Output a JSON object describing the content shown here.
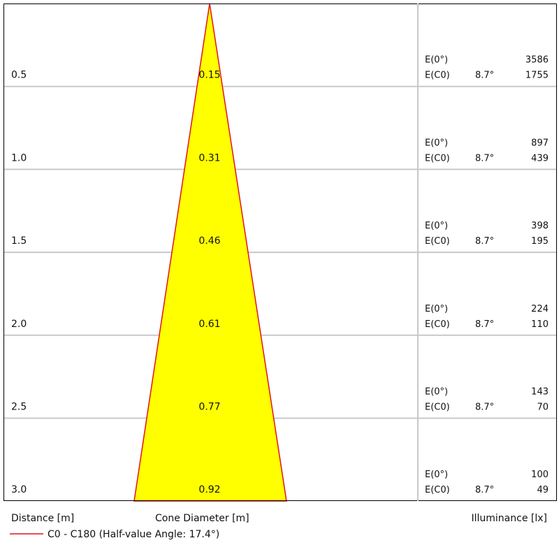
{
  "rows": [
    {
      "distance": "0.5",
      "diameter": "0.15",
      "e0_label": "E(0°)",
      "e0_value": "3586",
      "ec0_label": "E(C0)",
      "angle": "8.7°",
      "ec0_value": "1755"
    },
    {
      "distance": "1.0",
      "diameter": "0.31",
      "e0_label": "E(0°)",
      "e0_value": "897",
      "ec0_label": "E(C0)",
      "angle": "8.7°",
      "ec0_value": "439"
    },
    {
      "distance": "1.5",
      "diameter": "0.46",
      "e0_label": "E(0°)",
      "e0_value": "398",
      "ec0_label": "E(C0)",
      "angle": "8.7°",
      "ec0_value": "195"
    },
    {
      "distance": "2.0",
      "diameter": "0.61",
      "e0_label": "E(0°)",
      "e0_value": "224",
      "ec0_label": "E(C0)",
      "angle": "8.7°",
      "ec0_value": "110"
    },
    {
      "distance": "2.5",
      "diameter": "0.77",
      "e0_label": "E(0°)",
      "e0_value": "143",
      "ec0_label": "E(C0)",
      "angle": "8.7°",
      "ec0_value": "70"
    },
    {
      "distance": "3.0",
      "diameter": "0.92",
      "e0_label": "E(0°)",
      "e0_value": "100",
      "ec0_label": "E(C0)",
      "angle": "8.7°",
      "ec0_value": "49"
    }
  ],
  "footer": {
    "distance_label": "Distance [m]",
    "diameter_label": "Cone Diameter [m]",
    "illuminance_label": "Illuminance [lx]"
  },
  "legend": {
    "label": "C0 - C180 (Half-value Angle: 17.4°)"
  }
}
